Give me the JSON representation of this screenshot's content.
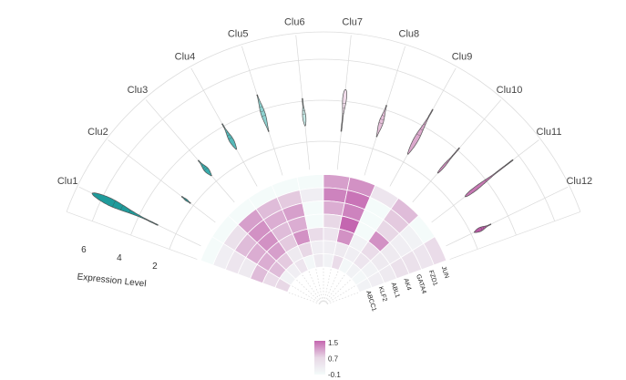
{
  "chart_data": {
    "type": "heatmap",
    "subtype": "circular violin + heatmap",
    "clusters": [
      "Clu1",
      "Clu2",
      "Clu3",
      "Clu4",
      "Clu5",
      "Clu6",
      "Clu7",
      "Clu8",
      "Clu9",
      "Clu10",
      "Clu11",
      "Clu12"
    ],
    "genes": [
      "JUN",
      "FZD1",
      "GATA4",
      "AK4",
      "ABL1",
      "KLF2",
      "ABCC1"
    ],
    "heatmap_values": [
      [
        -0.1,
        0.2,
        0.4,
        0.3,
        0.9,
        0.6,
        0.7
      ],
      [
        -0.1,
        0.5,
        0.9,
        1.0,
        1.0,
        0.9,
        0.1
      ],
      [
        -0.1,
        1.1,
        1.2,
        1.2,
        1.1,
        0.8,
        0.2
      ],
      [
        -0.1,
        0.9,
        1.0,
        0.9,
        0.8,
        0.3,
        0.4
      ],
      [
        -0.1,
        0.8,
        1.1,
        1.0,
        1.2,
        0.7,
        0.0
      ],
      [
        -0.1,
        0.2,
        -0.1,
        -0.1,
        0.6,
        0.2,
        0.3
      ],
      [
        1.1,
        1.3,
        1.0,
        0.7,
        0.4,
        0.2,
        0.1
      ],
      [
        1.2,
        1.4,
        1.3,
        1.5,
        1.2,
        0.3,
        0.6
      ],
      [
        0.4,
        -0.1,
        -0.1,
        -0.1,
        0.1,
        0.2,
        0.0
      ],
      [
        0.9,
        0.8,
        0.7,
        1.2,
        0.6,
        0.4,
        0.1
      ],
      [
        -0.1,
        0.1,
        0.2,
        0.3,
        0.3,
        0.1,
        0.0
      ],
      [
        0.6,
        0.4,
        0.5,
        0.5,
        0.3,
        0.2,
        0.1
      ]
    ],
    "violins": [
      {
        "cluster": "Clu1",
        "min": 2.6,
        "max": 6.6,
        "mode": 5.8,
        "width": 1.0,
        "color": "#1f9b9b"
      },
      {
        "cluster": "Clu2",
        "min": 1.7,
        "max": 2.3,
        "mode": 2.0,
        "width": 0.2,
        "color": "#2aa4a4"
      },
      {
        "cluster": "Clu3",
        "min": 1.9,
        "max": 3.0,
        "mode": 2.3,
        "width": 0.55,
        "color": "#37abab"
      },
      {
        "cluster": "Clu4",
        "min": 2.3,
        "max": 3.9,
        "mode": 2.8,
        "width": 0.55,
        "color": "#55b9b9"
      },
      {
        "cluster": "Clu5",
        "min": 2.5,
        "max": 4.6,
        "mode": 3.5,
        "width": 0.5,
        "color": "#8dd2d0"
      },
      {
        "cluster": "Clu6",
        "min": 2.4,
        "max": 3.9,
        "mode": 2.8,
        "width": 0.42,
        "color": "#c6e9e6"
      },
      {
        "cluster": "Clu7",
        "min": 2.1,
        "max": 4.4,
        "mode": 4.2,
        "width": 0.6,
        "color": "#f0dcea"
      },
      {
        "cluster": "Clu8",
        "min": 2.2,
        "max": 4.0,
        "mode": 3.0,
        "width": 0.5,
        "color": "#e6c0da"
      },
      {
        "cluster": "Clu9",
        "min": 2.0,
        "max": 4.8,
        "mode": 2.8,
        "width": 0.6,
        "color": "#dba8cc"
      },
      {
        "cluster": "Clu10",
        "min": 2.1,
        "max": 3.9,
        "mode": 2.4,
        "width": 0.3,
        "color": "#cf8dbd"
      },
      {
        "cluster": "Clu11",
        "min": 2.3,
        "max": 5.6,
        "mode": 2.6,
        "width": 0.55,
        "color": "#c677b2"
      },
      {
        "cluster": "Clu12",
        "min": 1.7,
        "max": 2.7,
        "mode": 2.0,
        "width": 0.5,
        "color": "#b85aa4"
      }
    ],
    "radial_axis": {
      "label": "Expression Level",
      "ticks": [
        2,
        4,
        6
      ],
      "range": [
        0.5,
        7
      ]
    },
    "colorbar": {
      "ticks": [
        "1.5",
        "0.7",
        "-0.1"
      ],
      "range": [
        -0.1,
        1.5
      ],
      "low_color": "#f4fbfa",
      "mid_color": "#e8d8e6",
      "high_color": "#c466b0"
    }
  },
  "colors": {
    "teal": "#1f9b9b",
    "magenta": "#c466b0",
    "grid": "#d9d9d9"
  }
}
